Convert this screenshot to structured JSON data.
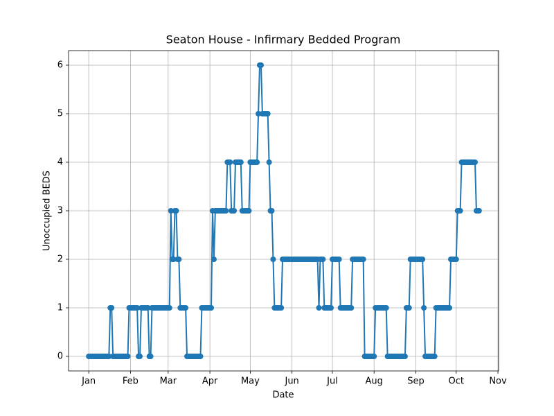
{
  "chart_data": {
    "type": "line",
    "title": "Seaton House - Infirmary Bedded Program",
    "x_label": "Date",
    "y_label": "Unoccupied BEDS",
    "color": "#1f77b4",
    "grid": true,
    "x": [
      0,
      1,
      2,
      3,
      4,
      5,
      6,
      7,
      8,
      9,
      10,
      11,
      12,
      13,
      14,
      15,
      16,
      17,
      18,
      19,
      20,
      21,
      22,
      23,
      24,
      25,
      26,
      27,
      28,
      29,
      30,
      31,
      32,
      33,
      34,
      35,
      36,
      37,
      38,
      39,
      40,
      41,
      42,
      43,
      44,
      45,
      46,
      47,
      48,
      49,
      50,
      51,
      52,
      53,
      54,
      55,
      56,
      57,
      58,
      59,
      60,
      61,
      62,
      63,
      64,
      65,
      66,
      67,
      68,
      69,
      70,
      71,
      72,
      73,
      74,
      75,
      76,
      77,
      78,
      79,
      80,
      81,
      82,
      83,
      84,
      85,
      86,
      87,
      88,
      89,
      90,
      91,
      92,
      93,
      94,
      95,
      96,
      97,
      98,
      99,
      100,
      101,
      102,
      103,
      104,
      105,
      106,
      107,
      108,
      109,
      110,
      111,
      112,
      113,
      114,
      115,
      116,
      117,
      118,
      119,
      120,
      121,
      122,
      123,
      124,
      125,
      126,
      127,
      128,
      129,
      130,
      131,
      132,
      133,
      134,
      135,
      136,
      137,
      138,
      139,
      140,
      141,
      142,
      143,
      144,
      145,
      146,
      147,
      148,
      149,
      150,
      151,
      152,
      153,
      154,
      155,
      156,
      157,
      158,
      159,
      160,
      161,
      162,
      163,
      164,
      165,
      166,
      167,
      168,
      169,
      170,
      171,
      172,
      173,
      174,
      175,
      176,
      177,
      178,
      179,
      180,
      181,
      182,
      183,
      184,
      185,
      186,
      187,
      188,
      189,
      190,
      191,
      192,
      193,
      194,
      195,
      196,
      197,
      198,
      199,
      200,
      201,
      202,
      203,
      204,
      205,
      206,
      207,
      208,
      209,
      210,
      211,
      212,
      213,
      214,
      215,
      216,
      217,
      218,
      219,
      220,
      221,
      222,
      223,
      224,
      225,
      226,
      227,
      228,
      229,
      230,
      231,
      232,
      233,
      234,
      235,
      236,
      237,
      238,
      239,
      240,
      241,
      242,
      243,
      244,
      245,
      246,
      247,
      248,
      249,
      250,
      251,
      252,
      253,
      254,
      255,
      256,
      257,
      258,
      259,
      260,
      261,
      262,
      263,
      264,
      265,
      266,
      267,
      268,
      269,
      270,
      271,
      272,
      273,
      274,
      275,
      276,
      277,
      278,
      279,
      280,
      281,
      282,
      283,
      284,
      285,
      286,
      287,
      288,
      289,
      290
    ],
    "values": [
      0,
      0,
      0,
      0,
      0,
      0,
      0,
      0,
      0,
      0,
      0,
      0,
      0,
      0,
      0,
      0,
      1,
      1,
      0,
      0,
      0,
      0,
      0,
      0,
      0,
      0,
      0,
      0,
      0,
      0,
      1,
      1,
      1,
      1,
      1,
      1,
      1,
      0,
      0,
      1,
      1,
      1,
      1,
      1,
      1,
      0,
      0,
      1,
      1,
      1,
      1,
      1,
      1,
      1,
      1,
      1,
      1,
      1,
      1,
      1,
      1,
      3,
      2,
      2,
      3,
      3,
      2,
      2,
      1,
      1,
      1,
      1,
      1,
      0,
      0,
      0,
      0,
      0,
      0,
      0,
      0,
      0,
      0,
      0,
      1,
      1,
      1,
      1,
      1,
      1,
      1,
      1,
      3,
      2,
      3,
      3,
      3,
      3,
      3,
      3,
      3,
      3,
      3,
      4,
      4,
      4,
      3,
      3,
      3,
      4,
      4,
      4,
      4,
      4,
      3,
      3,
      3,
      3,
      3,
      3,
      4,
      4,
      4,
      4,
      4,
      4,
      5,
      6,
      6,
      5,
      5,
      5,
      5,
      5,
      4,
      3,
      3,
      2,
      1,
      1,
      1,
      1,
      1,
      1,
      2,
      2,
      2,
      2,
      2,
      2,
      2,
      2,
      2,
      2,
      2,
      2,
      2,
      2,
      2,
      2,
      2,
      2,
      2,
      2,
      2,
      2,
      2,
      2,
      2,
      2,
      2,
      1,
      2,
      2,
      2,
      1,
      1,
      1,
      1,
      1,
      1,
      2,
      2,
      2,
      2,
      2,
      2,
      1,
      1,
      1,
      1,
      1,
      1,
      1,
      1,
      1,
      2,
      2,
      2,
      2,
      2,
      2,
      2,
      2,
      2,
      0,
      0,
      0,
      0,
      0,
      0,
      0,
      0,
      1,
      1,
      1,
      1,
      1,
      1,
      1,
      1,
      1,
      0,
      0,
      0,
      0,
      0,
      0,
      0,
      0,
      0,
      0,
      0,
      0,
      0,
      0,
      1,
      1,
      1,
      2,
      2,
      2,
      2,
      2,
      2,
      2,
      2,
      2,
      2,
      1,
      0,
      0,
      0,
      0,
      0,
      0,
      0,
      0,
      1,
      1,
      1,
      1,
      1,
      1,
      1,
      1,
      1,
      1,
      1,
      2,
      2,
      2,
      2,
      2,
      3,
      3,
      3,
      4,
      4,
      4,
      4,
      4,
      4,
      4,
      4,
      4,
      4,
      4,
      3,
      3,
      3
    ],
    "xlim": [
      -15,
      304.5
    ],
    "ylim": [
      -0.3,
      6.3
    ],
    "xticks": [
      {
        "value": 0,
        "label": "Jan"
      },
      {
        "value": 31,
        "label": "Feb"
      },
      {
        "value": 59,
        "label": "Mar"
      },
      {
        "value": 90,
        "label": "Apr"
      },
      {
        "value": 120,
        "label": "May"
      },
      {
        "value": 151,
        "label": "Jun"
      },
      {
        "value": 181,
        "label": "Jul"
      },
      {
        "value": 212,
        "label": "Aug"
      },
      {
        "value": 243,
        "label": "Sep"
      },
      {
        "value": 273,
        "label": "Oct"
      },
      {
        "value": 304,
        "label": "Nov"
      }
    ],
    "yticks": [
      0,
      1,
      2,
      3,
      4,
      5,
      6
    ]
  }
}
